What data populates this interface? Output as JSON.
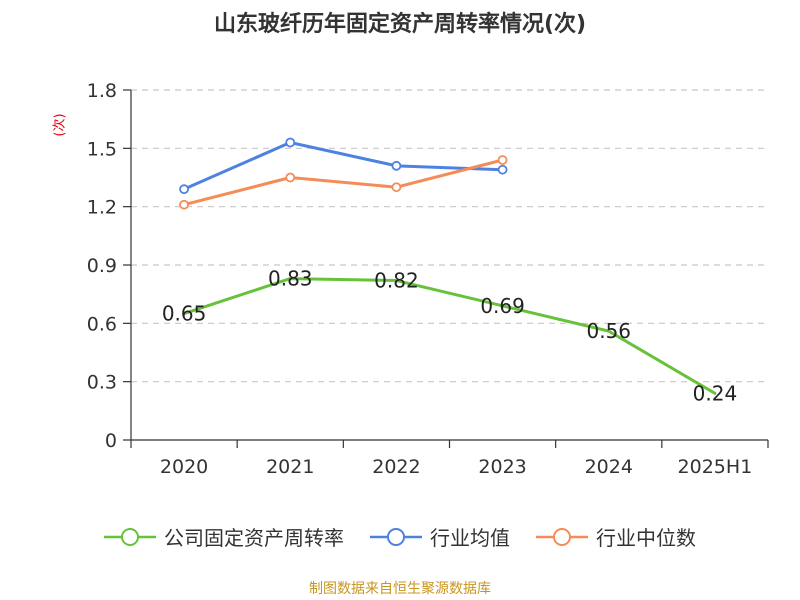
{
  "title": "山东玻纤历年固定资产周转率情况(次)",
  "unit_label": "(次)",
  "source_note": "制图数据来自恒生聚源数据库",
  "colors": {
    "company": "#67c23a",
    "industry_avg": "#4f81e0",
    "industry_median": "#f48c57",
    "grid": "#c8c8c8",
    "axis": "#333333"
  },
  "legend": [
    {
      "label": "公司固定资产周转率",
      "color": "#67c23a"
    },
    {
      "label": "行业均值",
      "color": "#4f81e0"
    },
    {
      "label": "行业中位数",
      "color": "#f48c57"
    }
  ],
  "chart_data": {
    "type": "line",
    "title": "山东玻纤历年固定资产周转率情况(次)",
    "ylabel": "(次)",
    "xlabel": "",
    "categories": [
      "2020",
      "2021",
      "2022",
      "2023",
      "2024",
      "2025H1"
    ],
    "ylim": [
      0,
      1.8
    ],
    "yticks": [
      0,
      0.3,
      0.6,
      0.9,
      1.2,
      1.5,
      1.8
    ],
    "ytick_labels": [
      "0",
      "0.3",
      "0.6",
      "0.9",
      "1.2",
      "1.5",
      "1.8"
    ],
    "grid": true,
    "legend_position": "bottom",
    "series": [
      {
        "name": "公司固定资产周转率",
        "color": "#67c23a",
        "values": [
          0.65,
          0.83,
          0.82,
          0.69,
          0.56,
          0.24
        ],
        "data_labels": [
          "0.65",
          "0.83",
          "0.82",
          "0.69",
          "0.56",
          "0.24"
        ],
        "markers": false
      },
      {
        "name": "行业均值",
        "color": "#4f81e0",
        "values": [
          1.29,
          1.53,
          1.41,
          1.39,
          null,
          null
        ],
        "markers": true
      },
      {
        "name": "行业中位数",
        "color": "#f48c57",
        "values": [
          1.21,
          1.35,
          1.3,
          1.44,
          null,
          null
        ],
        "markers": true
      }
    ]
  }
}
